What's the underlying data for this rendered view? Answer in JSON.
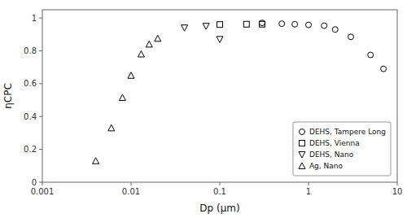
{
  "chart_data": {
    "type": "scatter",
    "x_label": "Dp (μm)",
    "y_label": "ηCPC",
    "log": "x",
    "xlim": [
      0.001,
      10
    ],
    "xticks": [
      0.001,
      0.01,
      0.1,
      1,
      10
    ],
    "ylim": [
      0,
      1.05
    ],
    "yticks": [
      0,
      0.2,
      0.4,
      0.6,
      0.8,
      1.0
    ],
    "grid": false,
    "legend": "lower right",
    "color": "black",
    "series": [
      {
        "name": "DEHS, Tampere Long",
        "marker": "circle",
        "x": [
          0.3,
          0.5,
          0.7,
          1.0,
          1.5,
          2.0,
          3.0,
          5.0,
          7.0
        ],
        "values": [
          0.97,
          0.965,
          0.962,
          0.958,
          0.953,
          0.93,
          0.885,
          0.775,
          0.69
        ]
      },
      {
        "name": "DEHS, Vienna",
        "marker": "square",
        "x": [
          0.1,
          0.2,
          0.3
        ],
        "values": [
          0.96,
          0.962,
          0.962
        ]
      },
      {
        "name": "DEHS, Nano",
        "marker": "triangle-down",
        "x": [
          0.04,
          0.07,
          0.1
        ],
        "values": [
          0.94,
          0.95,
          0.87
        ]
      },
      {
        "name": "Ag, Nano",
        "marker": "triangle-up",
        "x": [
          0.004,
          0.006,
          0.008,
          0.01,
          0.013,
          0.016,
          0.02
        ],
        "values": [
          0.13,
          0.33,
          0.515,
          0.65,
          0.78,
          0.84,
          0.875
        ]
      }
    ]
  }
}
